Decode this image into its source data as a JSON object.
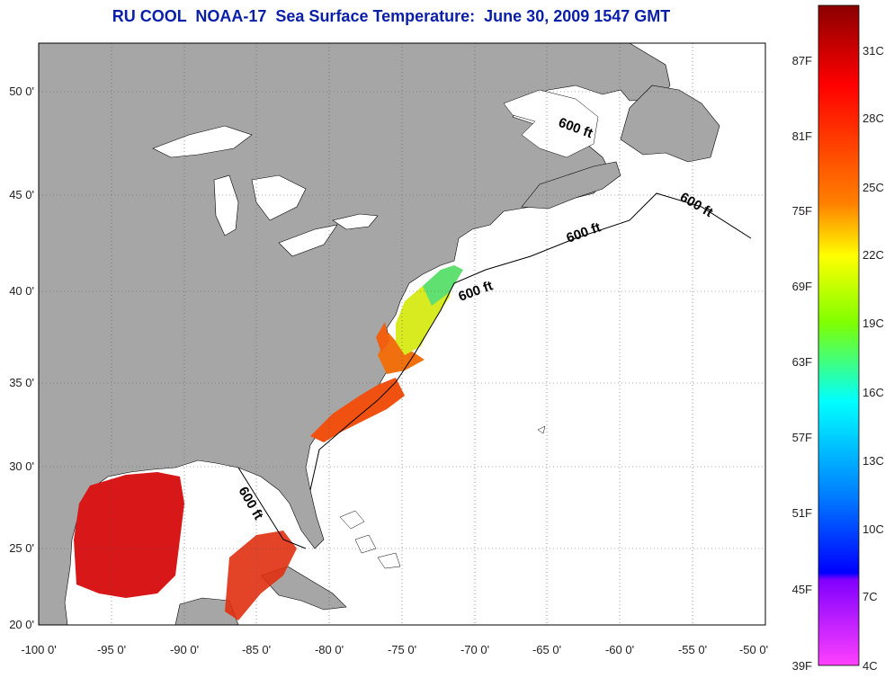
{
  "title": "RU COOL  NOAA-17  Sea Surface Temperature:  June 30, 2009 1547 GMT",
  "map": {
    "lon_range": [
      -100,
      -50
    ],
    "lat_range": [
      20,
      52.5
    ],
    "x_ticks": [
      "-100 0'",
      "-95 0'",
      "-90 0'",
      "-85 0'",
      "-80 0'",
      "-75 0'",
      "-70 0'",
      "-65 0'",
      "-60 0'",
      "-55 0'",
      "-50 0'"
    ],
    "y_ticks": [
      "50 0'",
      "45 0'",
      "40 0'",
      "35 0'",
      "30 0'",
      "25 0'",
      "20 0'"
    ],
    "contour_labels": [
      "600 ft",
      "600 ft",
      "600 ft",
      "600 ft",
      "600 ft"
    ],
    "colors": {
      "land": "#a6a6a6",
      "ocean": "#ffffff",
      "warm": "#e01010",
      "hot": "#c81010",
      "orange": "#f06010",
      "yellow": "#d8e820",
      "green": "#60e060",
      "cyan": "#40e0d0"
    }
  },
  "colorbar": {
    "fahrenheit_labels": [
      "87F",
      "81F",
      "75F",
      "69F",
      "63F",
      "57F",
      "51F",
      "45F",
      "39F"
    ],
    "celsius_labels": [
      "31C",
      "28C",
      "25C",
      "22C",
      "19C",
      "16C",
      "13C",
      "10C",
      "7C",
      "4C"
    ],
    "gradient_stops": [
      "#8b0000",
      "#ff0000",
      "#ff8000",
      "#ffff00",
      "#80ff00",
      "#00ffff",
      "#0080ff",
      "#0000ff",
      "#8000ff",
      "#ff40ff"
    ]
  }
}
